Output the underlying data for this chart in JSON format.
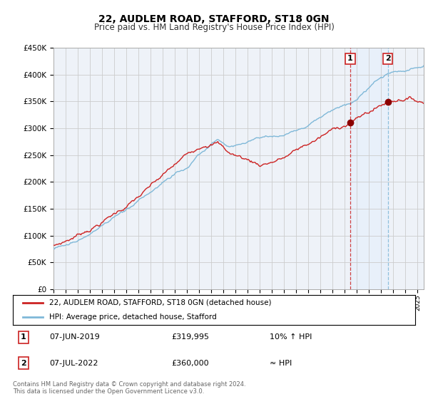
{
  "title": "22, AUDLEM ROAD, STAFFORD, ST18 0GN",
  "subtitle": "Price paid vs. HM Land Registry's House Price Index (HPI)",
  "ylabel_ticks": [
    "£0",
    "£50K",
    "£100K",
    "£150K",
    "£200K",
    "£250K",
    "£300K",
    "£350K",
    "£400K",
    "£450K"
  ],
  "ylim": [
    0,
    450000
  ],
  "xlim_start": 1995.0,
  "xlim_end": 2025.5,
  "legend_line1": "22, AUDLEM ROAD, STAFFORD, ST18 0GN (detached house)",
  "legend_line2": "HPI: Average price, detached house, Stafford",
  "sale1_date": "07-JUN-2019",
  "sale1_price": "£319,995",
  "sale1_hpi": "10% ↑ HPI",
  "sale2_date": "07-JUL-2022",
  "sale2_price": "£360,000",
  "sale2_hpi": "≈ HPI",
  "footer": "Contains HM Land Registry data © Crown copyright and database right 2024.\nThis data is licensed under the Open Government Licence v3.0.",
  "sale1_x": 2019.44,
  "sale1_y": 319995,
  "sale2_x": 2022.54,
  "sale2_y": 360000,
  "hpi_color": "#7fb8d8",
  "price_color": "#cc2222",
  "vline1_color": "#cc2222",
  "vline2_color": "#7fb8d8",
  "fill_color": "#ddeeff",
  "background_color": "#eef2f8",
  "plot_bg_color": "#ffffff",
  "grid_color": "#cccccc",
  "marker_color": "#8b0000"
}
